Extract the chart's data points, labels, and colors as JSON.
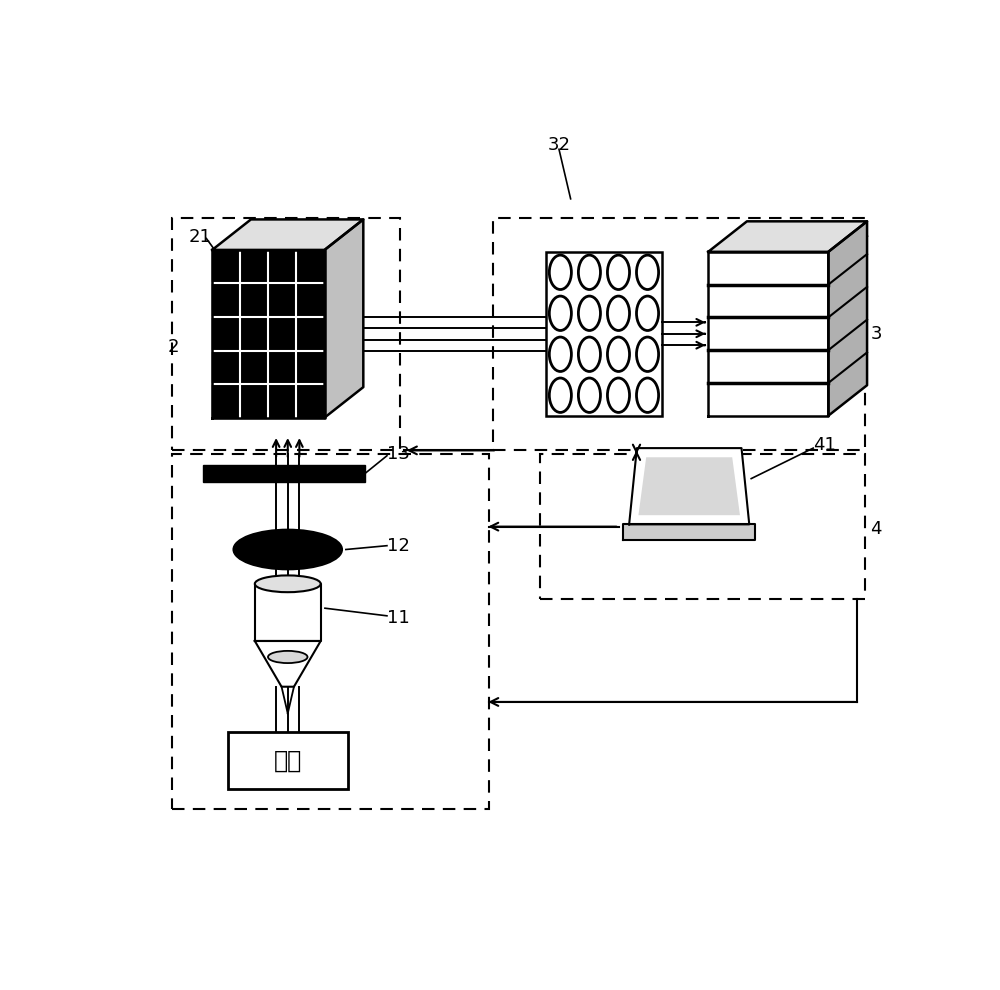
{
  "bg_color": "#ffffff",
  "fig_width": 10.0,
  "fig_height": 9.9,
  "sample_text": "样本",
  "fs": 13
}
